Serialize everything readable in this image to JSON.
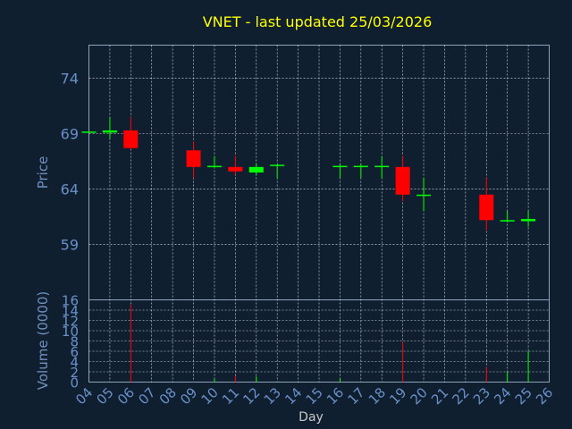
{
  "chart_data": {
    "type": "candlestick",
    "title": "VNET - last updated 25/03/2026",
    "xlabel": "Day",
    "price_axis": {
      "label": "Price",
      "ticks": [
        59,
        64,
        69,
        74
      ],
      "ylim": [
        54,
        77
      ]
    },
    "volume_axis": {
      "label": "Volume (0000)",
      "ticks": [
        0,
        2,
        4,
        6,
        8,
        10,
        12,
        14,
        16
      ],
      "ylim": [
        0,
        16
      ]
    },
    "x_ticks": [
      "04",
      "05",
      "06",
      "07",
      "08",
      "09",
      "10",
      "11",
      "12",
      "13",
      "14",
      "15",
      "16",
      "17",
      "18",
      "19",
      "20",
      "21",
      "22",
      "23",
      "24",
      "25",
      "26"
    ],
    "grid": true,
    "colors": {
      "up": "#00ff00",
      "down": "#ff0000",
      "title": "#ffff00",
      "background": "#0f1f2f"
    },
    "candles": [
      {
        "day": "04",
        "open": 69.2,
        "high": 69.2,
        "low": 69.2,
        "close": 69.2,
        "volume": 0.1
      },
      {
        "day": "05",
        "open": 69.1,
        "high": 70.5,
        "low": 68.6,
        "close": 69.3,
        "volume": 0.1
      },
      {
        "day": "06",
        "open": 69.3,
        "high": 70.5,
        "low": 67.6,
        "close": 67.7,
        "volume": 15.0
      },
      {
        "day": "09",
        "open": 67.5,
        "high": 68.3,
        "low": 65.0,
        "close": 66.0,
        "volume": 0.1
      },
      {
        "day": "10",
        "open": 66.0,
        "high": 67.0,
        "low": 65.9,
        "close": 66.1,
        "volume": 0.6
      },
      {
        "day": "11",
        "open": 66.0,
        "high": 67.0,
        "low": 65.3,
        "close": 65.6,
        "volume": 1.2
      },
      {
        "day": "12",
        "open": 65.5,
        "high": 66.3,
        "low": 65.3,
        "close": 66.0,
        "volume": 1.1
      },
      {
        "day": "13",
        "open": 66.1,
        "high": 66.2,
        "low": 65.0,
        "close": 66.2,
        "volume": 0.1
      },
      {
        "day": "16",
        "open": 66.0,
        "high": 66.2,
        "low": 65.0,
        "close": 66.1,
        "volume": 0.7
      },
      {
        "day": "17",
        "open": 66.0,
        "high": 66.3,
        "low": 65.0,
        "close": 66.1,
        "volume": 0.1
      },
      {
        "day": "18",
        "open": 66.0,
        "high": 67.0,
        "low": 65.0,
        "close": 66.1,
        "volume": 0.1
      },
      {
        "day": "19",
        "open": 66.0,
        "high": 67.0,
        "low": 62.9,
        "close": 63.5,
        "volume": 7.8
      },
      {
        "day": "20",
        "open": 63.4,
        "high": 65.0,
        "low": 62.0,
        "close": 63.5,
        "volume": 0.1
      },
      {
        "day": "23",
        "open": 63.5,
        "high": 65.0,
        "low": 60.3,
        "close": 61.2,
        "volume": 3.0
      },
      {
        "day": "24",
        "open": 61.1,
        "high": 62.0,
        "low": 61.0,
        "close": 61.2,
        "volume": 2.0
      },
      {
        "day": "25",
        "open": 61.1,
        "high": 62.0,
        "low": 60.6,
        "close": 61.3,
        "volume": 6.0
      }
    ]
  }
}
